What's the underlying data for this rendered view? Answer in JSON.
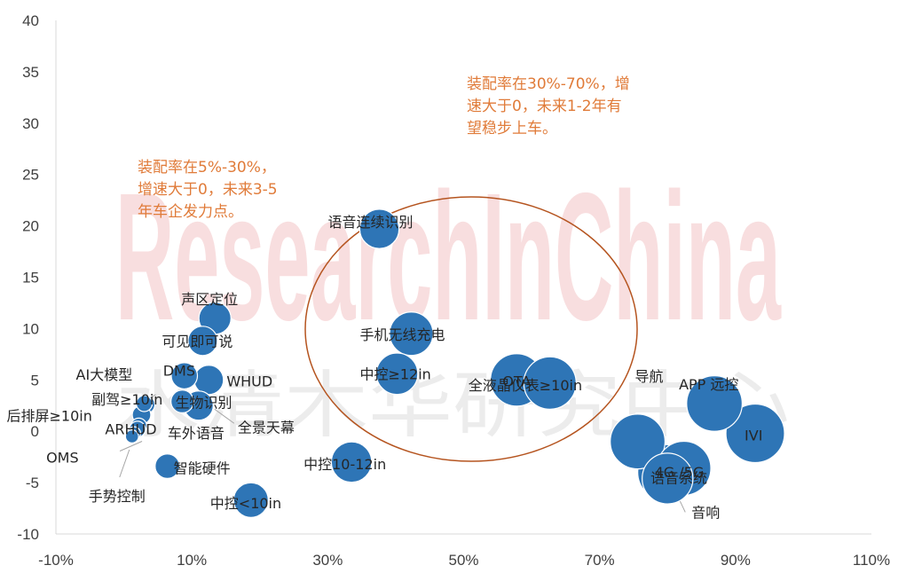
{
  "chart_data": {
    "type": "bubble",
    "xlim": [
      -10,
      110
    ],
    "ylim": [
      -10,
      40
    ],
    "x_ticks": [
      "-10%",
      "10%",
      "30%",
      "50%",
      "70%",
      "90%",
      "110%"
    ],
    "y_ticks": [
      "-10",
      "-5",
      "0",
      "5",
      "10",
      "15",
      "20",
      "25",
      "30",
      "35",
      "40"
    ],
    "grid": false,
    "bubble_color": "#2e75b6",
    "points": [
      {
        "label": "语音连续识别",
        "x": 37.6,
        "y": 19.7,
        "size": 1.8
      },
      {
        "label": "手机无线充电",
        "x": 42.3,
        "y": 9.5,
        "size": 2.2
      },
      {
        "label": "中控≥12in",
        "x": 40.2,
        "y": 5.6,
        "size": 2.0
      },
      {
        "label": "OTA",
        "x": 57.8,
        "y": 5.0,
        "size": 3.2
      },
      {
        "label": "全液晶仪表≥10in",
        "x": 62.7,
        "y": 4.7,
        "size": 3.2
      },
      {
        "label": "声区定位",
        "x": 13.4,
        "y": 11.0,
        "size": 1.2
      },
      {
        "label": "可见即可说",
        "x": 11.6,
        "y": 8.8,
        "size": 1.0
      },
      {
        "label": "DMS",
        "x": 8.9,
        "y": 5.4,
        "size": 0.8
      },
      {
        "label": "WHUD",
        "x": 12.5,
        "y": 5.0,
        "size": 1.0
      },
      {
        "label": "生物识别",
        "x": 8.6,
        "y": 2.9,
        "size": 0.6
      },
      {
        "label": "全景天幕",
        "x": 11.0,
        "y": 2.5,
        "size": 1.0
      },
      {
        "label": "AI大模型",
        "x": 3.0,
        "y": 2.7,
        "size": 0.3
      },
      {
        "label": "副驾≥10in",
        "x": 3.2,
        "y": 2.6,
        "size": 0.4
      },
      {
        "label": "后排屏≥10in",
        "x": 2.6,
        "y": 1.6,
        "size": 0.4
      },
      {
        "label": "ARHUD",
        "x": 2.2,
        "y": 0.5,
        "size": 0.3
      },
      {
        "label": "车外语音",
        "x": 2.0,
        "y": 0.2,
        "size": 0.3
      },
      {
        "label": "OMS",
        "x": 1.5,
        "y": -0.2,
        "size": 0.2
      },
      {
        "label": "手势控制",
        "x": 1.2,
        "y": -0.5,
        "size": 0.2
      },
      {
        "label": "智能硬件",
        "x": 6.4,
        "y": -3.4,
        "size": 0.7
      },
      {
        "label": "中控10-12in",
        "x": 33.5,
        "y": -3.0,
        "size": 1.9
      },
      {
        "label": "中控<10in",
        "x": 18.7,
        "y": -6.7,
        "size": 1.4
      },
      {
        "label": "导航",
        "x": 75.6,
        "y": -1.0,
        "size": 3.5
      },
      {
        "label": "语音系统",
        "x": 79.7,
        "y": -4.0,
        "size": 3.6
      },
      {
        "label": "4G /5G",
        "x": 82.4,
        "y": -3.6,
        "size": 3.4
      },
      {
        "label": "音响",
        "x": 80.0,
        "y": -4.6,
        "size": 3.0
      },
      {
        "label": "APP 远控",
        "x": 86.9,
        "y": 2.7,
        "size": 3.6
      },
      {
        "label": "IVI",
        "x": 92.9,
        "y": -0.2,
        "size": 4.0
      }
    ],
    "annotations": [
      {
        "text": "装配率在30%-70%，增\n速大于0，未来1-2年有\n望稳步上车。"
      },
      {
        "text": "装配率在5%-30%，\n增速大于0，未来3-5\n年车企发力点。"
      }
    ],
    "watermark": "ResearchInChina",
    "watermark_cn": "水清木华研究中心"
  }
}
